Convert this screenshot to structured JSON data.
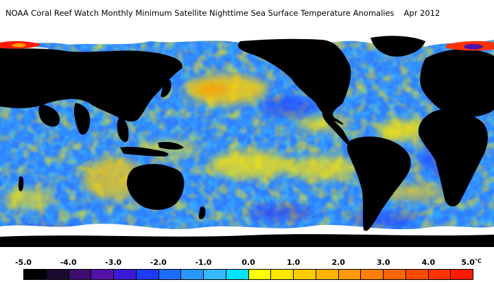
{
  "title": {
    "text": "NOAA Coral Reef Watch Monthly Minimum Satellite Nighttime Sea Surface Temperature Anomalies",
    "date": "Apr 2012"
  },
  "legend": {
    "ticks": [
      "-5.0",
      "-4.0",
      "-3.0",
      "-2.0",
      "-1.0",
      "0.0",
      "1.0",
      "2.0",
      "3.0",
      "4.0",
      "5.0"
    ],
    "unit": "°C",
    "colors": [
      "#000000",
      "#1a0a2e",
      "#3d0e6e",
      "#5512a8",
      "#3a1ad6",
      "#1e3aff",
      "#1c6cff",
      "#2a96ff",
      "#36b8ff",
      "#00e0ff",
      "#ffff00",
      "#ffe600",
      "#ffcc00",
      "#ffb300",
      "#ff9900",
      "#ff8000",
      "#ff6600",
      "#ff4c00",
      "#ff3300",
      "#ff1a00"
    ]
  }
}
